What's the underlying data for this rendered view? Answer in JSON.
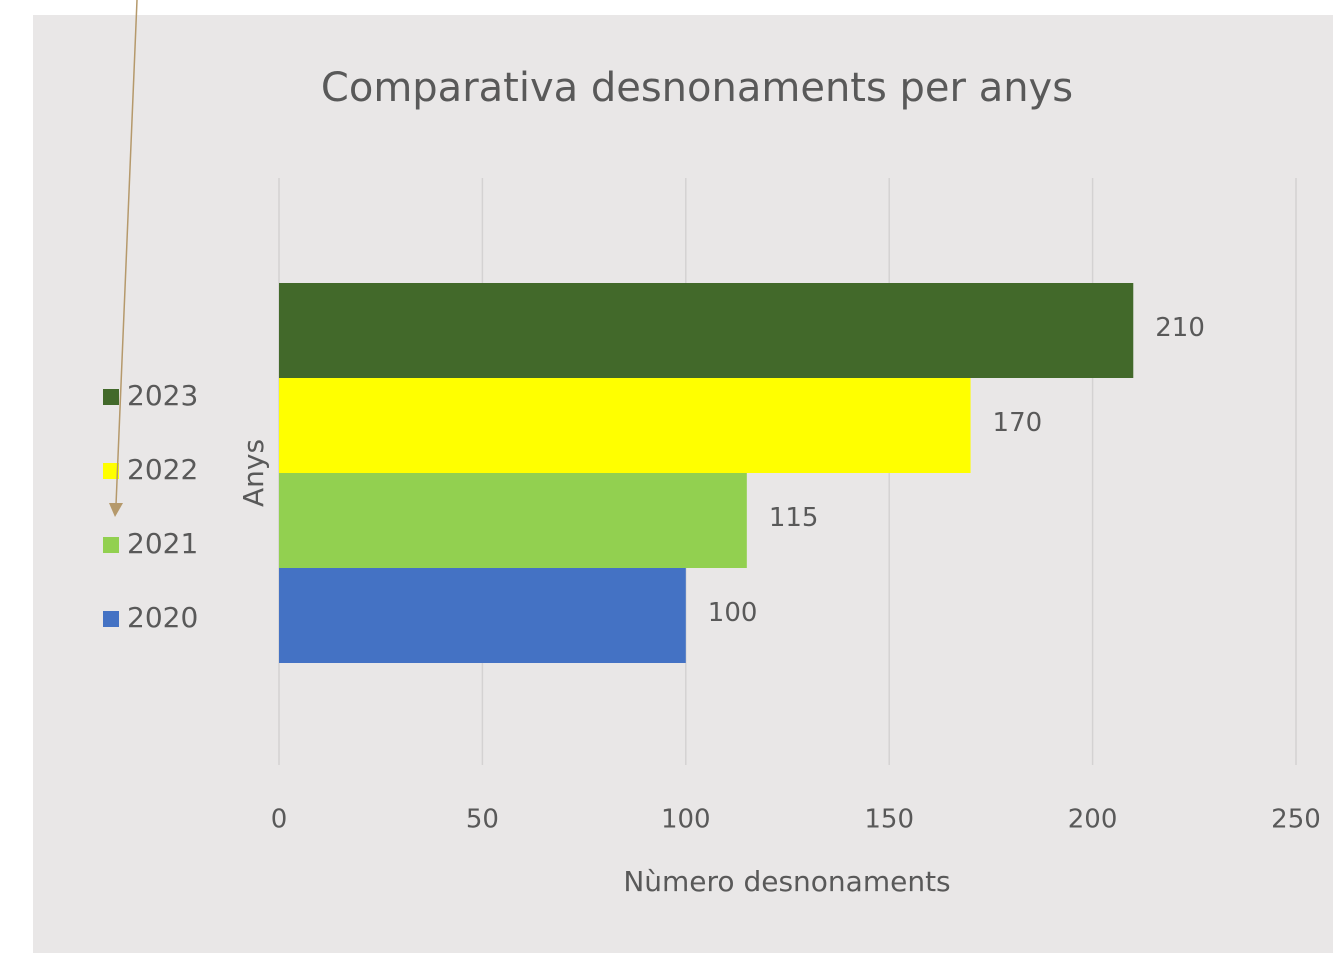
{
  "chart_data": {
    "type": "barh",
    "title": "Comparativa desnonaments per anys",
    "xlabel": "Nùmero desnonaments",
    "ylabel": "Anys",
    "series": [
      {
        "name": "2020",
        "color": "#4472c4",
        "values": [
          100
        ]
      },
      {
        "name": "2021",
        "color": "#92d050",
        "values": [
          115
        ]
      },
      {
        "name": "2022",
        "color": "#ffff00",
        "values": [
          170
        ]
      },
      {
        "name": "2023",
        "color": "#42692a",
        "values": [
          210
        ]
      }
    ],
    "xlim": [
      0,
      250
    ],
    "xticks": [
      0,
      50,
      100,
      150,
      200,
      250
    ],
    "grid": true,
    "legend": "left"
  }
}
